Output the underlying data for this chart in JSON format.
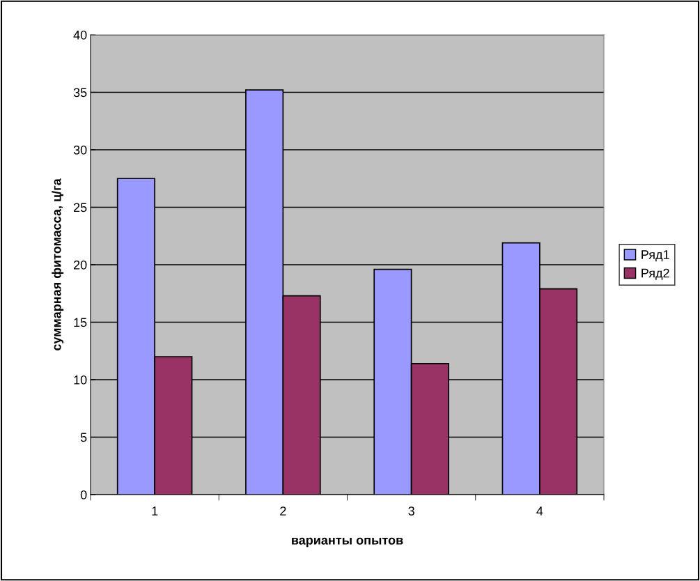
{
  "chart_data": {
    "type": "bar",
    "xlabel": "варианты опытов",
    "ylabel": "суммарная фитомасса, ц/га",
    "categories": [
      "1",
      "2",
      "3",
      "4"
    ],
    "series": [
      {
        "name": "Ряд1",
        "color": "#9999ff",
        "values": [
          27.5,
          35.2,
          19.6,
          21.9
        ]
      },
      {
        "name": "Ряд2",
        "color": "#993366",
        "values": [
          12.0,
          17.3,
          11.4,
          17.9
        ]
      }
    ],
    "ylim": [
      0,
      40
    ],
    "yticks": [
      0,
      5,
      10,
      15,
      20,
      25,
      30,
      35,
      40
    ],
    "grid": "y",
    "legend": "right"
  }
}
